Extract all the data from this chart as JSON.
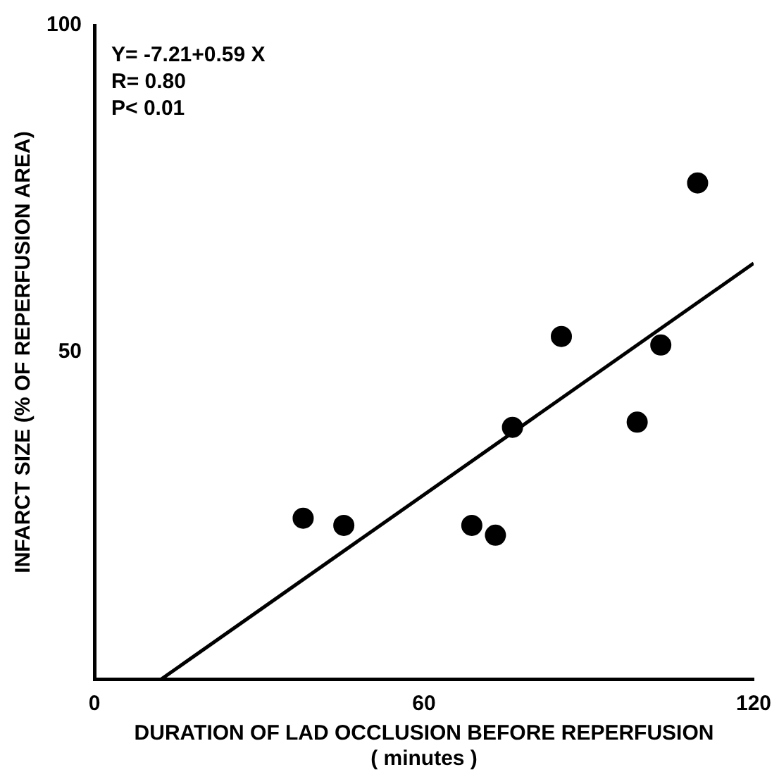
{
  "chart_data": {
    "type": "scatter",
    "xlabel": "DURATION OF LAD OCCLUSION BEFORE REPERFUSION\n( minutes )",
    "ylabel": "INFARCT SIZE (% OF REPERFUSION AREA)",
    "annotations": [
      "Y= -7.21+0.59 X",
      "R= 0.80",
      "P< 0.01"
    ],
    "xlim": [
      0,
      120
    ],
    "xticks": [
      0,
      60,
      120
    ],
    "ylim": [
      0,
      100
    ],
    "yticks": [
      50,
      100
    ],
    "grid": false,
    "legend": false,
    "series": [
      {
        "type": "scatter",
        "marker": "circle",
        "color": "#000000",
        "x": [
          38,
          45.4,
          68.7,
          73,
          76.1,
          85,
          98.8,
          103.1,
          109.8
        ],
        "values": [
          24.6,
          23.5,
          23.5,
          22,
          38.5,
          52.4,
          39.3,
          51.1,
          75.9
        ]
      },
      {
        "type": "line",
        "color": "#000000",
        "line_style": "solid",
        "x": [
          12.2,
          120
        ],
        "values": [
          0,
          63.6
        ]
      }
    ]
  }
}
